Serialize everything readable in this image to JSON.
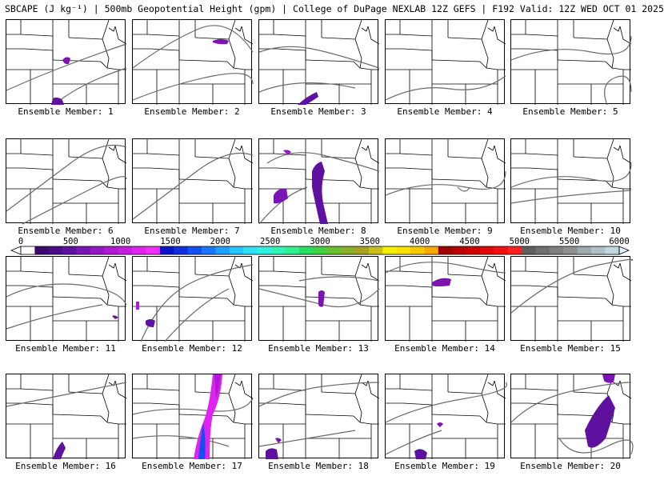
{
  "title": "SBCAPE (J kg⁻¹) | 500mb Geopotential Height (gpm) | College of DuPage NEXLAB 12Z GEFS | F192 Valid: 12Z WED OCT 01 2025",
  "member_prefix": "Ensemble Member:",
  "members": [
    {
      "label": "Ensemble Member: 1"
    },
    {
      "label": "Ensemble Member: 2"
    },
    {
      "label": "Ensemble Member: 3"
    },
    {
      "label": "Ensemble Member: 4"
    },
    {
      "label": "Ensemble Member: 5"
    },
    {
      "label": "Ensemble Member: 6"
    },
    {
      "label": "Ensemble Member: 7"
    },
    {
      "label": "Ensemble Member: 8"
    },
    {
      "label": "Ensemble Member: 9"
    },
    {
      "label": "Ensemble Member: 10"
    },
    {
      "label": "Ensemble Member: 11"
    },
    {
      "label": "Ensemble Member: 12"
    },
    {
      "label": "Ensemble Member: 13"
    },
    {
      "label": "Ensemble Member: 14"
    },
    {
      "label": "Ensemble Member: 15"
    },
    {
      "label": "Ensemble Member: 16"
    },
    {
      "label": "Ensemble Member: 17"
    },
    {
      "label": "Ensemble Member: 18"
    },
    {
      "label": "Ensemble Member: 19"
    },
    {
      "label": "Ensemble Member: 20"
    }
  ],
  "colorbar": {
    "ticks": [
      "0",
      "500",
      "1000",
      "1500",
      "2000",
      "2500",
      "3000",
      "3500",
      "4000",
      "4500",
      "5000",
      "5500",
      "6000"
    ],
    "colors": [
      "#ffffff",
      "#3a0a6e",
      "#4b0d87",
      "#5e109e",
      "#7a14b4",
      "#9416c6",
      "#b01ad6",
      "#c81ee4",
      "#e024f0",
      "#f030f8",
      "#0a14c8",
      "#1030e0",
      "#1450f0",
      "#1878f8",
      "#20a0fc",
      "#28c4fc",
      "#30e0f8",
      "#30f0e0",
      "#30f4b8",
      "#30f090",
      "#28e060",
      "#40d040",
      "#68c030",
      "#88b028",
      "#a8a020",
      "#c8c018",
      "#f0f000",
      "#f8e000",
      "#f8c800",
      "#f8a800",
      "#a00000",
      "#b80000",
      "#d00000",
      "#e00808",
      "#f01010",
      "#ff2020",
      "#606060",
      "#707070",
      "#808080",
      "#909090",
      "#a0a8b0",
      "#b0c0c8",
      "#c0d8e0"
    ],
    "cap_color": "#e0f0f8"
  }
}
